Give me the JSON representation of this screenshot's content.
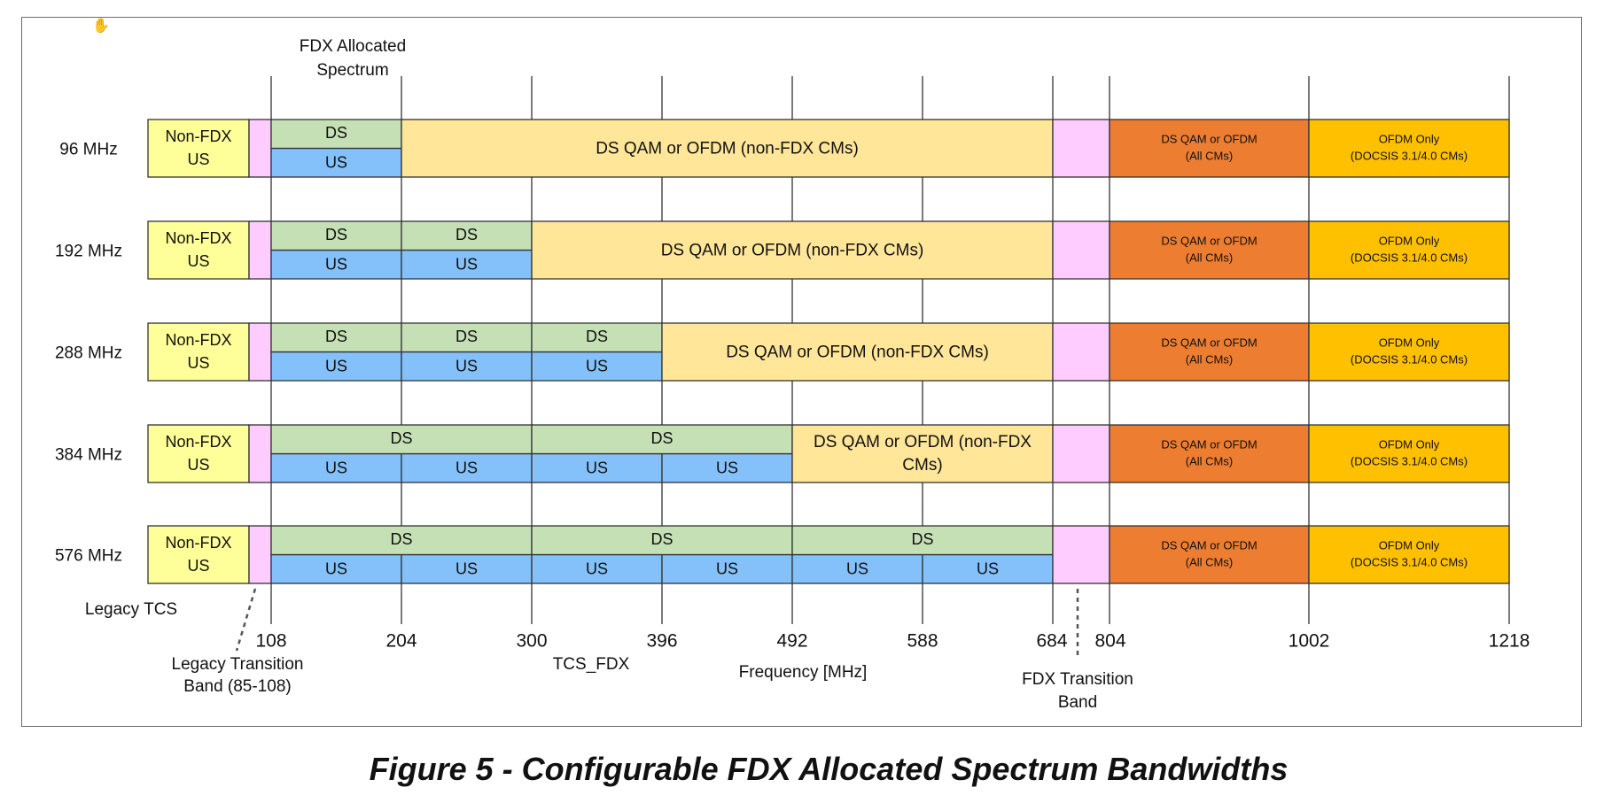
{
  "header": {
    "fdx_allocated_line1": "FDX Allocated",
    "fdx_allocated_line2": "Spectrum"
  },
  "colors": {
    "non_fdx_us": "#ffff99",
    "transition": "#ffccff",
    "ds": "#c5e0b4",
    "us": "#84c1fb",
    "ds_qam_non_fdx": "#ffe699",
    "ds_qam_all": "#ed7d31",
    "ofdm_only": "#ffc000"
  },
  "labels": {
    "non_fdx_line1": "Non-FDX",
    "non_fdx_line2": "US",
    "ds": "DS",
    "us": "US",
    "ds_qam_non_fdx": "DS QAM or OFDM (non-FDX CMs)",
    "ds_qam_non_fdx_wrap1": "DS QAM or OFDM (non-FDX",
    "ds_qam_non_fdx_wrap2": "CMs)",
    "ds_qam_all_line1": "DS QAM or OFDM",
    "ds_qam_all_line2": "(All CMs)",
    "ofdm_only_line1": "OFDM Only",
    "ofdm_only_line2": "(DOCSIS 3.1/4.0 CMs)"
  },
  "rows": [
    {
      "bandwidth": "96 MHz",
      "us_blocks": 1,
      "ds_groups": [
        1
      ]
    },
    {
      "bandwidth": "192 MHz",
      "us_blocks": 2,
      "ds_groups": [
        1,
        1
      ]
    },
    {
      "bandwidth": "288 MHz",
      "us_blocks": 3,
      "ds_groups": [
        1,
        1,
        1
      ]
    },
    {
      "bandwidth": "384 MHz",
      "us_blocks": 4,
      "ds_groups": [
        2,
        2
      ]
    },
    {
      "bandwidth": "576 MHz",
      "us_blocks": 6,
      "ds_groups": [
        2,
        2,
        2
      ]
    }
  ],
  "axis": {
    "ticks": [
      "108",
      "204",
      "300",
      "396",
      "492",
      "588",
      "684",
      "804",
      "1002",
      "1218"
    ],
    "title": "Frequency [MHz]",
    "tcs_fdx": "TCS_FDX"
  },
  "annotations": {
    "legacy_tcs": "Legacy TCS",
    "legacy_transition_line1": "Legacy Transition",
    "legacy_transition_line2": "Band (85-108)",
    "fdx_transition_line1": "FDX Transition",
    "fdx_transition_line2": "Band"
  },
  "caption": "Figure 5 - Configurable FDX Allocated Spectrum Bandwidths"
}
